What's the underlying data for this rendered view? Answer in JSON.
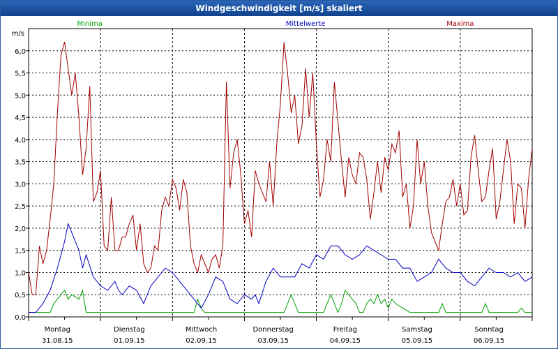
{
  "chart_data": {
    "type": "line",
    "title": "Windgeschwindigkeit [m/s] skaliert",
    "ylabel": "m/s",
    "ylim": [
      0,
      6.5
    ],
    "yticks": [
      0,
      0.5,
      1.0,
      1.5,
      2.0,
      2.5,
      3.0,
      3.5,
      4.0,
      4.5,
      5.0,
      5.5,
      6.0
    ],
    "ytick_labels": [
      "0,0",
      "0,5",
      "1,0",
      "1,5",
      "2,0",
      "2,5",
      "3,0",
      "3,5",
      "4,0",
      "4,5",
      "5,0",
      "5,5",
      "6,0"
    ],
    "grid": true,
    "legend_position": "top",
    "day_labels": [
      {
        "day": "Montag",
        "date": "31.08.15"
      },
      {
        "day": "Dienstag",
        "date": "01.09.15"
      },
      {
        "day": "Mittwoch",
        "date": "02.09.15"
      },
      {
        "day": "Donnerstag",
        "date": "03.09.15"
      },
      {
        "day": "Freitag",
        "date": "04.09.15"
      },
      {
        "day": "Samstag",
        "date": "05.09.15"
      },
      {
        "day": "Sonntag",
        "date": "06.09.15"
      }
    ],
    "x_days": 7,
    "series": [
      {
        "name": "Minima",
        "color": "#00a000",
        "x": [
          0,
          0.1,
          0.2,
          0.3,
          0.35,
          0.45,
          0.5,
          0.55,
          0.6,
          0.7,
          0.75,
          0.8,
          0.9,
          1.0,
          1.1,
          1.2,
          1.3,
          1.4,
          1.5,
          1.6,
          1.7,
          1.8,
          1.9,
          2.0,
          2.05,
          2.1,
          2.15,
          2.3,
          2.35,
          2.4,
          2.45,
          2.6,
          2.7,
          2.8,
          2.9,
          3.0,
          3.1,
          3.2,
          3.3,
          3.4,
          3.5,
          3.55,
          3.6,
          3.65,
          3.7,
          3.75,
          3.8,
          3.9,
          4.0,
          4.1,
          4.15,
          4.2,
          4.25,
          4.3,
          4.35,
          4.4,
          4.45,
          4.5,
          4.55,
          4.6,
          4.65,
          4.7,
          4.75,
          4.8,
          4.85,
          4.9,
          4.95,
          5.0,
          5.05,
          5.1,
          5.2,
          5.3,
          5.4,
          5.5,
          5.6,
          5.65,
          5.7,
          5.75,
          5.8,
          5.9,
          6.0,
          6.1,
          6.2,
          6.3,
          6.35,
          6.4,
          6.5,
          6.6,
          6.7,
          6.8,
          6.85,
          6.9,
          7.0
        ],
        "values": [
          0.1,
          0.1,
          0.1,
          0.1,
          0.3,
          0.5,
          0.6,
          0.4,
          0.5,
          0.4,
          0.6,
          0.1,
          0.1,
          0.1,
          0.1,
          0.1,
          0.1,
          0.1,
          0.1,
          0.1,
          0.1,
          0.1,
          0.1,
          0.1,
          0.1,
          0.1,
          0.1,
          0.1,
          0.4,
          0.2,
          0.1,
          0.1,
          0.1,
          0.1,
          0.1,
          0.1,
          0.1,
          0.1,
          0.1,
          0.1,
          0.1,
          0.1,
          0.3,
          0.5,
          0.3,
          0.1,
          0.1,
          0.1,
          0.1,
          0.1,
          0.3,
          0.5,
          0.3,
          0.1,
          0.3,
          0.6,
          0.5,
          0.4,
          0.3,
          0.1,
          0.1,
          0.3,
          0.4,
          0.3,
          0.5,
          0.3,
          0.4,
          0.2,
          0.4,
          0.3,
          0.2,
          0.1,
          0.1,
          0.1,
          0.1,
          0.1,
          0.1,
          0.3,
          0.1,
          0.1,
          0.1,
          0.1,
          0.1,
          0.1,
          0.3,
          0.1,
          0.1,
          0.1,
          0.1,
          0.1,
          0.2,
          0.1,
          0.1
        ]
      },
      {
        "name": "Mittelwerte",
        "color": "#0000c0",
        "x": [
          0,
          0.1,
          0.2,
          0.3,
          0.4,
          0.5,
          0.55,
          0.6,
          0.7,
          0.75,
          0.8,
          0.9,
          1.0,
          1.1,
          1.15,
          1.2,
          1.25,
          1.3,
          1.4,
          1.5,
          1.6,
          1.7,
          1.8,
          1.9,
          2.0,
          2.1,
          2.2,
          2.3,
          2.4,
          2.5,
          2.6,
          2.7,
          2.8,
          2.9,
          3.0,
          3.1,
          3.15,
          3.2,
          3.3,
          3.4,
          3.5,
          3.6,
          3.7,
          3.8,
          3.9,
          4.0,
          4.1,
          4.2,
          4.3,
          4.4,
          4.5,
          4.6,
          4.7,
          4.8,
          4.9,
          5.0,
          5.1,
          5.2,
          5.3,
          5.4,
          5.5,
          5.6,
          5.7,
          5.8,
          5.9,
          6.0,
          6.1,
          6.2,
          6.3,
          6.4,
          6.5,
          6.6,
          6.7,
          6.8,
          6.9,
          7.0
        ],
        "values": [
          0.1,
          0.1,
          0.3,
          0.6,
          1.1,
          1.7,
          2.1,
          1.9,
          1.5,
          1.1,
          1.4,
          0.9,
          0.7,
          0.6,
          0.7,
          0.8,
          0.6,
          0.5,
          0.7,
          0.6,
          0.3,
          0.7,
          0.9,
          1.1,
          1.0,
          0.8,
          0.6,
          0.4,
          0.2,
          0.5,
          0.9,
          0.8,
          0.4,
          0.3,
          0.5,
          0.4,
          0.5,
          0.3,
          0.8,
          1.1,
          0.9,
          0.9,
          0.9,
          1.2,
          1.1,
          1.4,
          1.3,
          1.6,
          1.6,
          1.4,
          1.3,
          1.4,
          1.6,
          1.5,
          1.4,
          1.3,
          1.3,
          1.1,
          1.1,
          0.8,
          0.9,
          1.0,
          1.3,
          1.1,
          1.0,
          1.0,
          0.8,
          0.7,
          0.9,
          1.1,
          1.0,
          1.0,
          0.9,
          1.0,
          0.8,
          0.9
        ]
      },
      {
        "name": "Maxima",
        "color": "#a00000",
        "x": [
          0,
          0.05,
          0.1,
          0.15,
          0.2,
          0.25,
          0.3,
          0.35,
          0.4,
          0.45,
          0.5,
          0.55,
          0.6,
          0.65,
          0.7,
          0.75,
          0.8,
          0.85,
          0.9,
          0.95,
          1.0,
          1.05,
          1.1,
          1.15,
          1.2,
          1.25,
          1.3,
          1.35,
          1.4,
          1.45,
          1.5,
          1.55,
          1.6,
          1.65,
          1.7,
          1.75,
          1.8,
          1.85,
          1.9,
          1.95,
          2.0,
          2.05,
          2.1,
          2.15,
          2.2,
          2.25,
          2.3,
          2.35,
          2.4,
          2.45,
          2.5,
          2.55,
          2.6,
          2.65,
          2.7,
          2.75,
          2.8,
          2.85,
          2.9,
          2.95,
          3.0,
          3.05,
          3.1,
          3.15,
          3.2,
          3.25,
          3.3,
          3.35,
          3.4,
          3.45,
          3.5,
          3.55,
          3.6,
          3.65,
          3.7,
          3.75,
          3.8,
          3.85,
          3.9,
          3.95,
          4.0,
          4.05,
          4.1,
          4.15,
          4.2,
          4.25,
          4.3,
          4.35,
          4.4,
          4.45,
          4.5,
          4.55,
          4.6,
          4.65,
          4.7,
          4.75,
          4.8,
          4.85,
          4.9,
          4.95,
          5.0,
          5.05,
          5.1,
          5.15,
          5.2,
          5.25,
          5.3,
          5.35,
          5.4,
          5.45,
          5.5,
          5.55,
          5.6,
          5.65,
          5.7,
          5.75,
          5.8,
          5.85,
          5.9,
          5.95,
          6.0,
          6.05,
          6.1,
          6.15,
          6.2,
          6.25,
          6.3,
          6.35,
          6.4,
          6.45,
          6.5,
          6.55,
          6.6,
          6.65,
          6.7,
          6.75,
          6.8,
          6.85,
          6.9,
          6.95,
          7.0
        ],
        "values": [
          1.0,
          0.5,
          0.5,
          1.6,
          1.2,
          1.5,
          2.2,
          3.0,
          4.6,
          5.9,
          6.2,
          5.6,
          5.0,
          5.5,
          4.5,
          3.2,
          3.8,
          5.2,
          2.6,
          2.8,
          3.3,
          1.6,
          1.5,
          2.7,
          1.5,
          1.5,
          1.8,
          1.8,
          2.1,
          2.3,
          1.5,
          2.1,
          1.2,
          1.0,
          1.1,
          1.6,
          1.5,
          2.4,
          2.7,
          2.5,
          3.1,
          2.9,
          2.4,
          3.1,
          2.8,
          1.6,
          1.2,
          1.0,
          1.4,
          1.2,
          1.0,
          1.3,
          1.4,
          1.1,
          1.6,
          5.3,
          2.9,
          3.7,
          4.0,
          3.2,
          2.1,
          2.4,
          1.8,
          3.3,
          3.0,
          2.8,
          2.6,
          3.5,
          2.5,
          3.9,
          4.8,
          6.2,
          5.5,
          4.6,
          5.0,
          3.9,
          4.3,
          5.6,
          4.5,
          5.5,
          3.9,
          2.7,
          3.1,
          4.0,
          3.5,
          5.3,
          4.4,
          3.5,
          2.7,
          3.6,
          3.2,
          3.0,
          3.7,
          3.6,
          3.1,
          2.2,
          2.8,
          3.5,
          2.8,
          3.6,
          3.3,
          3.9,
          3.7,
          4.2,
          2.7,
          3.0,
          2.0,
          2.5,
          4.0,
          3.0,
          3.5,
          2.5,
          1.9,
          1.7,
          1.5,
          2.1,
          2.6,
          2.7,
          3.1,
          2.5,
          3.0,
          2.3,
          2.4,
          3.6,
          4.1,
          3.3,
          2.6,
          2.7,
          3.3,
          3.8,
          2.2,
          2.6,
          3.3,
          4.0,
          3.5,
          2.1,
          3.0,
          2.9,
          2.0,
          3.1,
          3.8
        ]
      }
    ]
  }
}
